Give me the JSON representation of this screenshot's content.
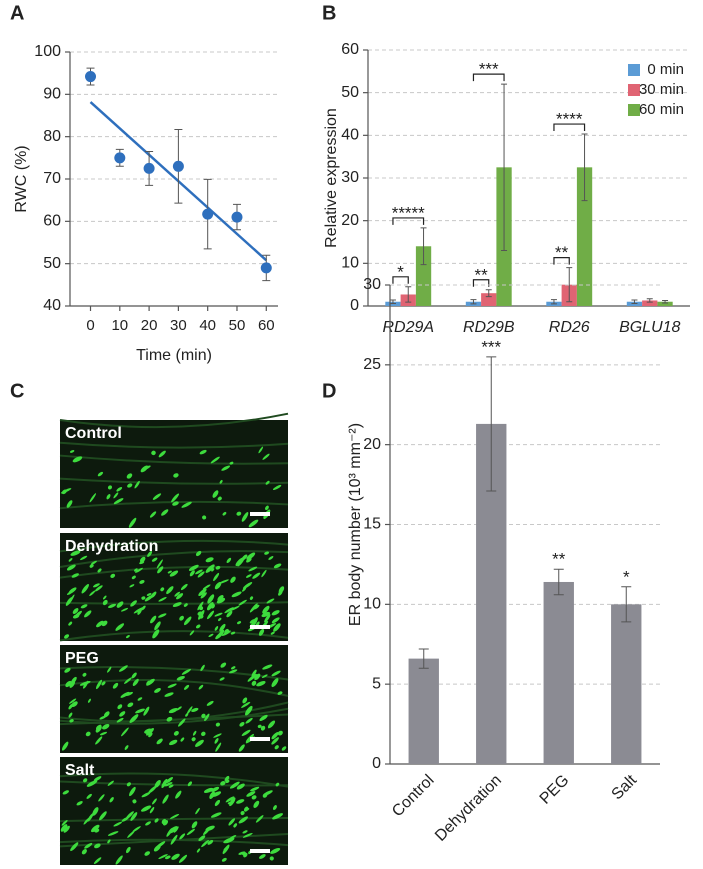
{
  "panels": [
    "A",
    "B",
    "C",
    "D"
  ],
  "micrographs": {
    "labels": [
      "Control",
      "Dehydration",
      "PEG",
      "Salt"
    ]
  },
  "chart_data": [
    {
      "type": "scatter",
      "x": [
        0,
        10,
        20,
        30,
        40,
        50,
        60
      ],
      "values": [
        94.2,
        75,
        72.5,
        73,
        61.7,
        61,
        49
      ],
      "errors": [
        2,
        2,
        4,
        8.7,
        8.2,
        3,
        3
      ],
      "color": "#2e6fbd",
      "trendline": true,
      "xlabel": "Time (min)",
      "ylabel": "RWC (%)",
      "xlim": [
        -7,
        64
      ],
      "ylim": [
        40,
        100
      ],
      "xticks": [
        0,
        10,
        20,
        30,
        40,
        50,
        60
      ],
      "yticks": [
        40,
        50,
        60,
        70,
        80,
        90,
        100
      ],
      "grid": true
    },
    {
      "type": "bar",
      "categories": [
        "RD29A",
        "RD29B",
        "RD26",
        "BGLU18"
      ],
      "italic_categories": true,
      "series": [
        {
          "name": "0 min",
          "color": "#5b9bd5",
          "values": [
            1,
            1,
            1,
            1
          ],
          "errors": [
            0.4,
            0.5,
            0.5,
            0.4
          ]
        },
        {
          "name": "30 min",
          "color": "#e06473",
          "values": [
            2.7,
            3,
            5,
            1.3
          ],
          "errors": [
            1.8,
            0.8,
            4,
            0.4
          ]
        },
        {
          "name": "60 min",
          "color": "#70ad47",
          "values": [
            14,
            32.5,
            32.5,
            1
          ],
          "errors": [
            4.3,
            19.5,
            7.8,
            0.3
          ]
        }
      ],
      "ylabel": "Relative expression",
      "ylim": [
        0,
        60
      ],
      "yticks": [
        0,
        10,
        20,
        30,
        40,
        50,
        60
      ],
      "grid": true,
      "legend": "upper right",
      "annotations": [
        {
          "text": "*",
          "category": 0,
          "series": [
            0,
            1
          ]
        },
        {
          "text": "*****",
          "category": 0,
          "series": [
            0,
            2
          ]
        },
        {
          "text": "**",
          "category": 1,
          "series": [
            0,
            1
          ]
        },
        {
          "text": "***",
          "category": 1,
          "series": [
            0,
            2
          ]
        },
        {
          "text": "**",
          "category": 2,
          "series": [
            0,
            1
          ]
        },
        {
          "text": "****",
          "category": 2,
          "series": [
            0,
            2
          ]
        }
      ]
    },
    {
      "type": "bar",
      "categories": [
        "Control",
        "Dehydration",
        "PEG",
        "Salt"
      ],
      "values": [
        6.6,
        21.3,
        11.4,
        10
      ],
      "errors": [
        0.6,
        4.2,
        0.8,
        1.1
      ],
      "color": "#8b8b93",
      "annotations": [
        null,
        "***",
        "**",
        "*"
      ],
      "ylabel": "ER body number (10³ mm⁻²)",
      "ylim": [
        0,
        30
      ],
      "yticks": [
        0,
        5,
        10,
        15,
        20,
        25,
        30
      ],
      "grid": true
    }
  ]
}
